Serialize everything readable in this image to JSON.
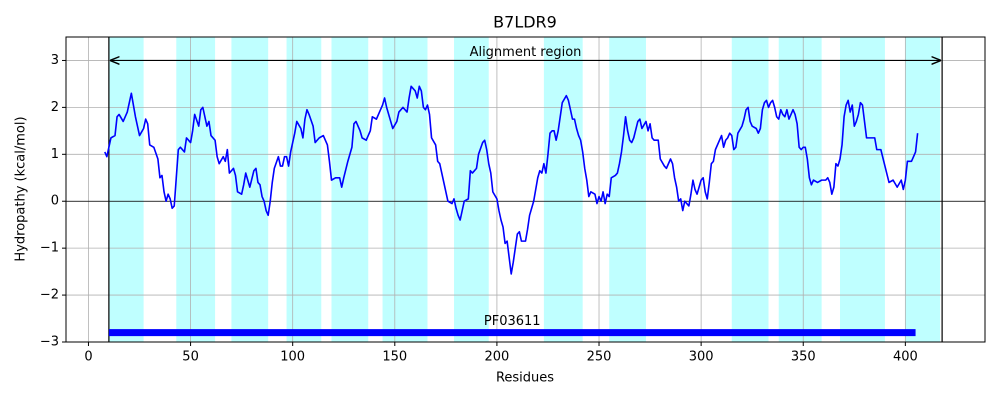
{
  "chart_data": {
    "type": "line",
    "title": "B7LDR9",
    "xlabel": "Residues",
    "ylabel": "Hydropathy (kcal/mol)",
    "x": [
      8,
      9,
      11,
      13,
      14,
      15,
      17,
      19,
      21,
      23,
      25,
      27,
      28,
      29,
      30,
      32,
      34,
      35,
      36,
      37,
      38,
      39,
      40,
      41,
      42,
      43,
      44,
      45,
      47,
      48,
      50,
      51,
      52,
      54,
      55,
      56,
      58,
      59,
      60,
      62,
      63,
      64,
      66,
      67,
      68,
      69,
      71,
      72,
      73,
      75,
      76,
      77,
      78,
      79,
      81,
      82,
      83,
      84,
      85,
      86,
      87,
      88,
      89,
      90,
      91,
      93,
      94,
      95,
      96,
      97,
      98,
      99,
      101,
      102,
      104,
      105,
      106,
      107,
      108,
      110,
      111,
      113,
      115,
      117,
      118,
      119,
      121,
      123,
      124,
      125,
      127,
      129,
      130,
      131,
      133,
      134,
      136,
      138,
      139,
      141,
      142,
      144,
      145,
      146,
      148,
      149,
      151,
      152,
      154,
      156,
      157,
      158,
      160,
      161,
      162,
      163,
      164,
      165,
      166,
      167,
      168,
      170,
      171,
      172,
      174,
      176,
      178,
      179,
      180,
      181,
      182,
      183,
      184,
      186,
      187,
      188,
      190,
      191,
      193,
      194,
      195,
      196,
      197,
      198,
      200,
      201,
      202,
      203,
      204,
      205,
      206,
      207,
      208,
      209,
      210,
      211,
      212,
      214,
      215,
      216,
      218,
      219,
      220,
      221,
      222,
      223,
      224,
      225,
      226,
      227,
      228,
      229,
      230,
      231,
      232,
      234,
      235,
      236,
      237,
      238,
      239,
      240,
      241,
      242,
      243,
      244,
      245,
      246,
      248,
      249,
      250,
      251,
      252,
      253,
      254,
      255,
      256,
      258,
      259,
      260,
      261,
      262,
      263,
      264,
      265,
      266,
      267,
      269,
      270,
      271,
      273,
      274,
      275,
      276,
      277,
      279,
      280,
      282,
      283,
      285,
      286,
      287,
      288,
      289,
      290,
      291,
      292,
      294,
      295,
      296,
      297,
      298,
      300,
      301,
      302,
      303,
      304,
      305,
      306,
      307,
      309,
      310,
      311,
      312,
      313,
      314,
      315,
      316,
      317,
      318,
      320,
      321,
      322,
      323,
      324,
      325,
      327,
      328,
      329,
      330,
      331,
      332,
      333,
      334,
      335,
      336,
      337,
      338,
      339,
      340,
      341,
      342,
      343,
      344,
      345,
      346,
      347,
      348,
      349,
      350,
      351,
      352,
      353,
      354,
      355,
      357,
      359,
      361,
      362,
      363,
      364,
      365,
      366,
      367,
      368,
      369,
      370,
      371,
      372,
      373,
      374,
      375,
      376,
      377,
      378,
      379,
      380,
      381,
      383,
      385,
      386,
      388,
      390,
      392,
      394,
      396,
      398,
      399,
      400,
      401,
      403,
      404,
      405,
      406
    ],
    "values": [
      1.05,
      0.95,
      1.35,
      1.4,
      1.8,
      1.85,
      1.7,
      1.9,
      2.3,
      1.8,
      1.4,
      1.55,
      1.75,
      1.65,
      1.2,
      1.15,
      0.9,
      0.5,
      0.55,
      0.2,
      0.0,
      0.15,
      0.05,
      -0.15,
      -0.1,
      0.5,
      1.1,
      1.15,
      1.05,
      1.35,
      1.25,
      1.5,
      1.85,
      1.6,
      1.95,
      2.0,
      1.6,
      1.7,
      1.4,
      1.3,
      0.95,
      0.8,
      0.95,
      0.85,
      1.1,
      0.6,
      0.7,
      0.55,
      0.2,
      0.15,
      0.35,
      0.6,
      0.45,
      0.3,
      0.65,
      0.7,
      0.4,
      0.35,
      0.1,
      0.0,
      -0.2,
      -0.3,
      0.0,
      0.4,
      0.7,
      0.95,
      0.75,
      0.75,
      0.95,
      0.95,
      0.75,
      1.05,
      1.45,
      1.7,
      1.55,
      1.35,
      1.75,
      1.95,
      1.85,
      1.6,
      1.25,
      1.35,
      1.4,
      1.2,
      0.85,
      0.45,
      0.5,
      0.5,
      0.3,
      0.5,
      0.85,
      1.15,
      1.65,
      1.7,
      1.5,
      1.35,
      1.3,
      1.5,
      1.8,
      1.75,
      1.85,
      2.05,
      2.2,
      2.0,
      1.7,
      1.55,
      1.7,
      1.9,
      2.0,
      1.9,
      2.2,
      2.45,
      2.35,
      2.2,
      2.45,
      2.35,
      2.0,
      1.95,
      2.05,
      1.85,
      1.35,
      1.2,
      0.85,
      0.8,
      0.4,
      0.0,
      -0.05,
      0.05,
      -0.15,
      -0.3,
      -0.4,
      -0.2,
      0.0,
      0.05,
      0.65,
      0.6,
      0.7,
      1.0,
      1.25,
      1.3,
      1.1,
      0.8,
      0.6,
      0.2,
      0.05,
      -0.2,
      -0.4,
      -0.55,
      -0.9,
      -0.85,
      -1.2,
      -1.55,
      -1.3,
      -1.0,
      -0.7,
      -0.65,
      -0.85,
      -0.85,
      -0.6,
      -0.3,
      0.0,
      0.25,
      0.5,
      0.65,
      0.6,
      0.8,
      0.6,
      1.0,
      1.45,
      1.5,
      1.5,
      1.3,
      1.5,
      1.8,
      2.1,
      2.25,
      2.15,
      1.95,
      1.75,
      1.75,
      1.55,
      1.4,
      1.3,
      1.05,
      0.7,
      0.45,
      0.1,
      0.2,
      0.15,
      -0.05,
      0.1,
      0.0,
      0.2,
      -0.05,
      0.15,
      0.1,
      0.5,
      0.55,
      0.6,
      0.8,
      1.05,
      1.4,
      1.8,
      1.5,
      1.3,
      1.25,
      1.35,
      1.7,
      1.75,
      1.55,
      1.7,
      1.5,
      1.65,
      1.35,
      1.3,
      1.3,
      0.9,
      0.75,
      0.7,
      0.9,
      0.8,
      0.5,
      0.3,
      0.0,
      0.05,
      -0.2,
      0.0,
      -0.1,
      0.15,
      0.45,
      0.25,
      0.15,
      0.45,
      0.5,
      0.2,
      0.05,
      0.4,
      0.8,
      0.85,
      1.1,
      1.3,
      1.4,
      1.15,
      1.3,
      1.35,
      1.45,
      1.4,
      1.1,
      1.15,
      1.45,
      1.6,
      1.75,
      1.95,
      2.0,
      1.7,
      1.6,
      1.55,
      1.45,
      1.55,
      1.95,
      2.1,
      2.15,
      2.0,
      2.1,
      2.15,
      2.0,
      1.8,
      1.75,
      1.95,
      1.85,
      1.8,
      1.95,
      1.75,
      1.85,
      1.95,
      1.85,
      1.65,
      1.15,
      1.1,
      1.15,
      1.15,
      0.9,
      0.5,
      0.35,
      0.45,
      0.4,
      0.45,
      0.45,
      0.5,
      0.4,
      0.15,
      0.3,
      0.8,
      0.75,
      0.9,
      1.2,
      1.8,
      2.05,
      2.15,
      1.9,
      2.05,
      1.6,
      1.7,
      1.85,
      2.1,
      2.05,
      1.7,
      1.35,
      1.35,
      1.35,
      1.1,
      1.1,
      0.75,
      0.4,
      0.45,
      0.3,
      0.45,
      0.25,
      0.45,
      0.85,
      0.85,
      0.95,
      1.05,
      1.45
    ],
    "color": "#0000ff",
    "regions": [
      [
        10,
        27
      ],
      [
        43,
        62
      ],
      [
        70,
        88
      ],
      [
        97,
        114
      ],
      [
        119,
        137
      ],
      [
        144,
        166
      ],
      [
        179,
        196
      ],
      [
        223,
        242
      ],
      [
        255,
        273
      ],
      [
        315,
        333
      ],
      [
        338,
        359
      ],
      [
        368,
        390
      ],
      [
        400,
        417
      ]
    ],
    "region_color": "#bfffff",
    "alignment": {
      "label": "Alignment region",
      "start": 10,
      "end": 418,
      "y": 3
    },
    "domain": {
      "label": "PF03611",
      "start": 10,
      "end": 405,
      "y": -2.8
    },
    "hlines": [
      0
    ],
    "xlim": [
      -11,
      439
    ],
    "ylim": [
      -3,
      3.5
    ],
    "xticks": [
      0,
      50,
      100,
      150,
      200,
      250,
      300,
      350,
      400
    ],
    "yticks": [
      {
        "value": -3,
        "label": "−3"
      },
      {
        "value": -2,
        "label": "−2"
      },
      {
        "value": -1,
        "label": "−1"
      },
      0,
      1,
      2,
      3
    ],
    "grid": true
  }
}
